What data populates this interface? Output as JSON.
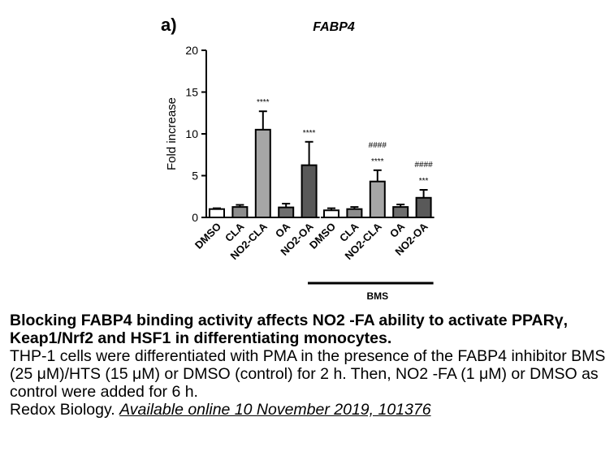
{
  "chart_data": {
    "type": "bar",
    "panel_label": "a)",
    "title": "FABP4",
    "ylabel": "Fold increase",
    "xlabel": "",
    "ylim": [
      0,
      20
    ],
    "yticks": [
      "0",
      "5",
      "10",
      "15",
      "20"
    ],
    "groups": [
      {
        "label": "",
        "bars": [
          {
            "category": "DMSO",
            "value": 1.0,
            "error": 0.1,
            "color": "#ffffff",
            "sig": []
          },
          {
            "category": "CLA",
            "value": 1.25,
            "error": 0.25,
            "color": "#8c8c8c",
            "sig": []
          },
          {
            "category": "NO2-CLA",
            "value": 10.5,
            "error": 2.2,
            "color": "#a6a6a6",
            "sig": [
              "****"
            ]
          },
          {
            "category": "OA",
            "value": 1.2,
            "error": 0.45,
            "color": "#6e6e6e",
            "sig": []
          },
          {
            "category": "NO2-OA",
            "value": 6.25,
            "error": 2.8,
            "color": "#595959",
            "sig": [
              "****"
            ]
          }
        ]
      },
      {
        "label": "BMS",
        "bars": [
          {
            "category": "DMSO",
            "value": 0.85,
            "error": 0.25,
            "color": "#ffffff",
            "sig": []
          },
          {
            "category": "CLA",
            "value": 1.0,
            "error": 0.25,
            "color": "#8c8c8c",
            "sig": []
          },
          {
            "category": "NO2-CLA",
            "value": 4.3,
            "error": 1.35,
            "color": "#a6a6a6",
            "sig": [
              "####",
              "****"
            ]
          },
          {
            "category": "OA",
            "value": 1.25,
            "error": 0.3,
            "color": "#6e6e6e",
            "sig": []
          },
          {
            "category": "NO2-OA",
            "value": 2.35,
            "error": 0.95,
            "color": "#595959",
            "sig": [
              "####",
              "***"
            ]
          }
        ]
      }
    ]
  },
  "caption": {
    "title": "Blocking FABP4 binding activity affects NO2 -FA ability to activate PPARγ, Keap1/Nrf2 and HSF1 in differentiating monocytes.",
    "body": "THP-1 cells were differentiated with PMA in the presence of the FABP4 inhibitor BMS (25 μM)/HTS (15 μM) or DMSO (control) for 2 h. Then, NO2 -FA (1 μM) or DMSO as control were added for 6 h.",
    "source_journal": "Redox Biology.",
    "source_link": "Available online 10 November 2019, 101376"
  }
}
